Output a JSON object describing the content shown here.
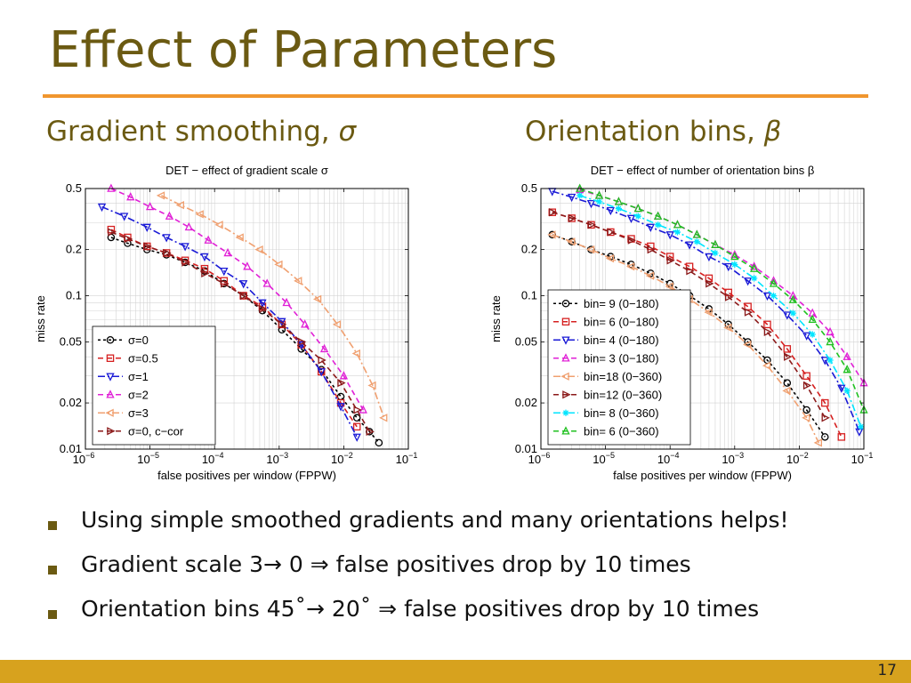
{
  "slide": {
    "title": "Effect of Parameters",
    "subheads": {
      "left_text": "Gradient smoothing, ",
      "left_symbol": "σ",
      "right_text": "Orientation bins, ",
      "right_symbol": "β"
    },
    "bullets": [
      "Using simple smoothed gradients and many orientations helps!",
      "Gradient scale 3→ 0 ⇒ false positives drop by 10 times",
      "Orientation bins 45˚→ 20˚ ⇒ false positives drop by 10 times"
    ],
    "page_number": "17",
    "colors": {
      "title": "#6b5a12",
      "rule": "#f0962e",
      "footer": "#d7a21e"
    }
  },
  "chart_data": [
    {
      "type": "line",
      "title": "DET − effect of gradient scale σ",
      "xlabel": "false positives per window (FPPW)",
      "ylabel": "miss rate",
      "x_scale": "log",
      "y_scale": "log",
      "xlim": [
        1e-06,
        0.1
      ],
      "ylim": [
        0.01,
        0.5
      ],
      "x_ticks": [
        {
          "v": 1e-06,
          "b": "10",
          "e": "−6"
        },
        {
          "v": 1e-05,
          "b": "10",
          "e": "−5"
        },
        {
          "v": 0.0001,
          "b": "10",
          "e": "−4"
        },
        {
          "v": 0.001,
          "b": "10",
          "e": "−3"
        },
        {
          "v": 0.01,
          "b": "10",
          "e": "−2"
        },
        {
          "v": 0.1,
          "b": "10",
          "e": "−1"
        }
      ],
      "y_ticks": [
        {
          "v": 0.5,
          "label": "0.5"
        },
        {
          "v": 0.2,
          "label": "0.2"
        },
        {
          "v": 0.1,
          "label": "0.1"
        },
        {
          "v": 0.05,
          "label": "0.05"
        },
        {
          "v": 0.02,
          "label": "0.02"
        },
        {
          "v": 0.01,
          "label": "0.01"
        }
      ],
      "grid": true,
      "legend_position": "bottom-left",
      "series": [
        {
          "name": "σ=0",
          "color": "#000000",
          "marker": "circle",
          "dash": "3,3",
          "x": [
            2.5e-06,
            4.5e-06,
            9e-06,
            1.8e-05,
            3.5e-05,
            7e-05,
            0.00014,
            0.00028,
            0.00055,
            0.0011,
            0.0022,
            0.0045,
            0.009,
            0.016,
            0.025,
            0.035
          ],
          "y": [
            0.24,
            0.22,
            0.2,
            0.185,
            0.165,
            0.145,
            0.12,
            0.1,
            0.08,
            0.06,
            0.045,
            0.033,
            0.022,
            0.016,
            0.013,
            0.011
          ]
        },
        {
          "name": "σ=0.5",
          "color": "#d62020",
          "marker": "square",
          "dash": "6,4",
          "x": [
            2.5e-06,
            4.5e-06,
            9e-06,
            1.8e-05,
            3.5e-05,
            7e-05,
            0.00014,
            0.00028,
            0.00055,
            0.0011,
            0.0022,
            0.0045,
            0.009,
            0.016
          ],
          "y": [
            0.27,
            0.24,
            0.21,
            0.19,
            0.17,
            0.15,
            0.125,
            0.1,
            0.085,
            0.065,
            0.048,
            0.032,
            0.02,
            0.014
          ]
        },
        {
          "name": "σ=1",
          "color": "#1a1ad6",
          "marker": "triangle-down",
          "dash": "8,3,2,3",
          "x": [
            1.8e-06,
            4e-06,
            9e-06,
            1.8e-05,
            3.5e-05,
            7e-05,
            0.00014,
            0.00028,
            0.00055,
            0.0011,
            0.0022,
            0.0045,
            0.009,
            0.016
          ],
          "y": [
            0.38,
            0.33,
            0.28,
            0.24,
            0.21,
            0.18,
            0.145,
            0.12,
            0.09,
            0.068,
            0.048,
            0.032,
            0.019,
            0.012
          ]
        },
        {
          "name": "σ=2",
          "color": "#e020d6",
          "marker": "triangle-up",
          "dash": "6,4",
          "x": [
            2.5e-06,
            5e-06,
            1e-05,
            2e-05,
            4e-05,
            8e-05,
            0.00016,
            0.00032,
            0.00065,
            0.0013,
            0.0025,
            0.005,
            0.01,
            0.02
          ],
          "y": [
            0.5,
            0.44,
            0.38,
            0.33,
            0.28,
            0.23,
            0.19,
            0.155,
            0.12,
            0.09,
            0.065,
            0.045,
            0.03,
            0.018
          ]
        },
        {
          "name": "σ=3",
          "color": "#f0a070",
          "marker": "triangle-left",
          "dash": "8,3,2,3",
          "x": [
            1.5e-05,
            3e-05,
            6e-05,
            0.00012,
            0.00025,
            0.0005,
            0.001,
            0.002,
            0.004,
            0.008,
            0.016,
            0.028,
            0.042
          ],
          "y": [
            0.45,
            0.39,
            0.34,
            0.29,
            0.24,
            0.2,
            0.16,
            0.125,
            0.095,
            0.065,
            0.042,
            0.026,
            0.016
          ]
        },
        {
          "name": "σ=0, c−cor",
          "color": "#8b1a1a",
          "marker": "triangle-right",
          "dash": "6,4",
          "x": [
            2.5e-06,
            4.5e-06,
            9e-06,
            1.8e-05,
            3.5e-05,
            7e-05,
            0.00014,
            0.00028,
            0.00055,
            0.0011,
            0.0022,
            0.0045,
            0.009,
            0.016,
            0.025
          ],
          "y": [
            0.26,
            0.235,
            0.21,
            0.19,
            0.165,
            0.14,
            0.12,
            0.1,
            0.082,
            0.065,
            0.05,
            0.038,
            0.027,
            0.018,
            0.013
          ]
        }
      ]
    },
    {
      "type": "line",
      "title": "DET − effect of number of orientation bins β",
      "xlabel": "false positives per window (FPPW)",
      "ylabel": "miss rate",
      "x_scale": "log",
      "y_scale": "log",
      "xlim": [
        1e-06,
        0.1
      ],
      "ylim": [
        0.01,
        0.5
      ],
      "x_ticks": [
        {
          "v": 1e-06,
          "b": "10",
          "e": "−6"
        },
        {
          "v": 1e-05,
          "b": "10",
          "e": "−5"
        },
        {
          "v": 0.0001,
          "b": "10",
          "e": "−4"
        },
        {
          "v": 0.001,
          "b": "10",
          "e": "−3"
        },
        {
          "v": 0.01,
          "b": "10",
          "e": "−2"
        },
        {
          "v": 0.1,
          "b": "10",
          "e": "−1"
        }
      ],
      "y_ticks": [
        {
          "v": 0.5,
          "label": "0.5"
        },
        {
          "v": 0.2,
          "label": "0.2"
        },
        {
          "v": 0.1,
          "label": "0.1"
        },
        {
          "v": 0.05,
          "label": "0.05"
        },
        {
          "v": 0.02,
          "label": "0.02"
        },
        {
          "v": 0.01,
          "label": "0.01"
        }
      ],
      "grid": true,
      "legend_position": "bottom-left",
      "series": [
        {
          "name": "bin=  9 (0−180)",
          "color": "#000000",
          "marker": "circle",
          "dash": "3,3",
          "x": [
            1.5e-06,
            3e-06,
            6e-06,
            1.2e-05,
            2.5e-05,
            5e-05,
            0.0001,
            0.0002,
            0.0004,
            0.0008,
            0.0016,
            0.0032,
            0.0065,
            0.013,
            0.025
          ],
          "y": [
            0.25,
            0.225,
            0.2,
            0.18,
            0.16,
            0.14,
            0.12,
            0.1,
            0.082,
            0.065,
            0.05,
            0.038,
            0.027,
            0.018,
            0.012
          ]
        },
        {
          "name": "bin=  6 (0−180)",
          "color": "#d62020",
          "marker": "square",
          "dash": "6,4",
          "x": [
            1.5e-06,
            3e-06,
            6e-06,
            1.2e-05,
            2.5e-05,
            5e-05,
            0.0001,
            0.0002,
            0.0004,
            0.0008,
            0.0016,
            0.0032,
            0.0065,
            0.013,
            0.025,
            0.045
          ],
          "y": [
            0.35,
            0.32,
            0.29,
            0.26,
            0.235,
            0.21,
            0.18,
            0.155,
            0.13,
            0.105,
            0.085,
            0.065,
            0.045,
            0.03,
            0.02,
            0.012
          ]
        },
        {
          "name": "bin=  4 (0−180)",
          "color": "#1a1ad6",
          "marker": "triangle-down",
          "dash": "8,3,2,3",
          "x": [
            1.5e-06,
            3e-06,
            6e-06,
            1.2e-05,
            2.5e-05,
            5e-05,
            0.0001,
            0.0002,
            0.0004,
            0.0008,
            0.0016,
            0.0032,
            0.0065,
            0.013,
            0.025,
            0.045,
            0.085
          ],
          "y": [
            0.48,
            0.44,
            0.4,
            0.36,
            0.32,
            0.28,
            0.25,
            0.215,
            0.18,
            0.155,
            0.125,
            0.1,
            0.075,
            0.055,
            0.038,
            0.025,
            0.013
          ]
        },
        {
          "name": "bin=  3 (0−180)",
          "color": "#e020d6",
          "marker": "triangle-up",
          "dash": "6,4",
          "x": [
            4e-06,
            8e-06,
            1.6e-05,
            3.2e-05,
            6.5e-05,
            0.00013,
            0.00026,
            0.0005,
            0.001,
            0.002,
            0.004,
            0.008,
            0.016,
            0.03,
            0.055,
            0.1
          ],
          "y": [
            0.49,
            0.45,
            0.41,
            0.37,
            0.33,
            0.29,
            0.25,
            0.215,
            0.185,
            0.155,
            0.125,
            0.1,
            0.077,
            0.058,
            0.04,
            0.027
          ]
        },
        {
          "name": "bin=18 (0−360)",
          "color": "#f0a070",
          "marker": "triangle-left",
          "dash": "8,3,2,3",
          "x": [
            1.5e-06,
            3e-06,
            6e-06,
            1.2e-05,
            2.5e-05,
            5e-05,
            0.0001,
            0.0002,
            0.0004,
            0.0008,
            0.0016,
            0.0032,
            0.0065,
            0.013,
            0.02
          ],
          "y": [
            0.25,
            0.225,
            0.2,
            0.175,
            0.155,
            0.135,
            0.115,
            0.095,
            0.078,
            0.062,
            0.048,
            0.035,
            0.024,
            0.016,
            0.011
          ]
        },
        {
          "name": "bin=12 (0−360)",
          "color": "#8b1a1a",
          "marker": "triangle-right",
          "dash": "6,4",
          "x": [
            1.5e-06,
            3e-06,
            6e-06,
            1.2e-05,
            2.5e-05,
            5e-05,
            0.0001,
            0.0002,
            0.0004,
            0.0008,
            0.0016,
            0.0032,
            0.0065,
            0.013,
            0.025
          ],
          "y": [
            0.35,
            0.32,
            0.29,
            0.26,
            0.23,
            0.2,
            0.17,
            0.145,
            0.12,
            0.098,
            0.078,
            0.058,
            0.04,
            0.026,
            0.016
          ]
        },
        {
          "name": "bin= 8 (0−360)",
          "color": "#00e5ff",
          "marker": "star",
          "dash": "8,3,2,3",
          "x": [
            4e-06,
            8e-06,
            1.6e-05,
            3.2e-05,
            6.5e-05,
            0.00013,
            0.00026,
            0.0005,
            0.001,
            0.002,
            0.004,
            0.008,
            0.016,
            0.03,
            0.055,
            0.09
          ],
          "y": [
            0.45,
            0.41,
            0.37,
            0.33,
            0.29,
            0.26,
            0.225,
            0.19,
            0.16,
            0.13,
            0.1,
            0.077,
            0.056,
            0.038,
            0.024,
            0.014
          ]
        },
        {
          "name": "bin= 6 (0−360)",
          "color": "#20c020",
          "marker": "triangle-up",
          "dash": "6,4",
          "x": [
            4e-06,
            8e-06,
            1.6e-05,
            3.2e-05,
            6.5e-05,
            0.00013,
            0.00026,
            0.0005,
            0.001,
            0.002,
            0.004,
            0.008,
            0.016,
            0.03,
            0.055,
            0.1
          ],
          "y": [
            0.5,
            0.45,
            0.41,
            0.37,
            0.33,
            0.29,
            0.25,
            0.215,
            0.18,
            0.15,
            0.12,
            0.094,
            0.07,
            0.05,
            0.033,
            0.018
          ]
        }
      ]
    }
  ]
}
